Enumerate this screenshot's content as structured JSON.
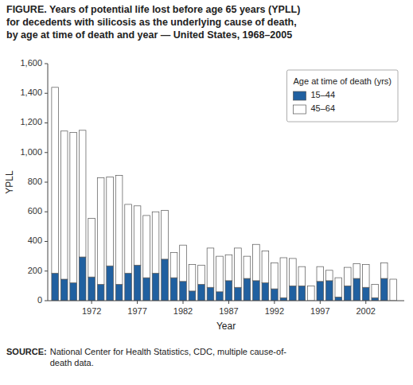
{
  "chart_data": {
    "type": "bar",
    "stacked": true,
    "title": "FIGURE. Years of potential life lost before age 65 years (YPLL)\nfor decedents with silicosis as the underlying cause of death,\nby age at time of death and year — United States, 1968–2005",
    "annotations": [
      "SOURCE:",
      "National Center for Health Statistics, CDC, multiple cause-of-\ndeath data."
    ],
    "x": [
      1968,
      1969,
      1970,
      1971,
      1972,
      1973,
      1974,
      1975,
      1976,
      1977,
      1978,
      1979,
      1980,
      1981,
      1982,
      1983,
      1984,
      1985,
      1986,
      1987,
      1988,
      1989,
      1990,
      1991,
      1992,
      1993,
      1994,
      1995,
      1996,
      1997,
      1998,
      1999,
      2000,
      2001,
      2002,
      2003,
      2004,
      2005
    ],
    "series": [
      {
        "name": "15–44",
        "color": "#2060a0",
        "values": [
          185,
          145,
          120,
          295,
          160,
          110,
          235,
          110,
          185,
          240,
          155,
          185,
          280,
          155,
          130,
          65,
          110,
          90,
          60,
          135,
          90,
          150,
          135,
          120,
          80,
          20,
          100,
          100,
          0,
          130,
          135,
          25,
          100,
          150,
          90,
          20,
          150,
          0
        ]
      },
      {
        "name": "45–64",
        "color": "#ffffff",
        "values": [
          1255,
          1000,
          1015,
          855,
          395,
          720,
          600,
          735,
          465,
          400,
          420,
          415,
          330,
          170,
          245,
          180,
          130,
          265,
          240,
          175,
          265,
          150,
          245,
          215,
          175,
          270,
          185,
          130,
          100,
          100,
          70,
          130,
          125,
          100,
          155,
          90,
          105,
          145
        ]
      }
    ],
    "xlabel": "Year",
    "ylabel": "YPLL",
    "xlim": [
      1967.2,
      2006.2
    ],
    "xticks": [
      1972,
      1977,
      1982,
      1987,
      1992,
      1997,
      2002
    ],
    "ylim": [
      0,
      1600
    ],
    "yticks": [
      0,
      200,
      400,
      600,
      800,
      {
        "value": 1000,
        "label": "1,000"
      },
      {
        "value": 1200,
        "label": "1,200"
      },
      {
        "value": 1400,
        "label": "1,400"
      },
      {
        "value": 1600,
        "label": "1,600"
      }
    ],
    "legend": "upper right",
    "legend_title": "Age at time of death (yrs)",
    "grid": false
  }
}
